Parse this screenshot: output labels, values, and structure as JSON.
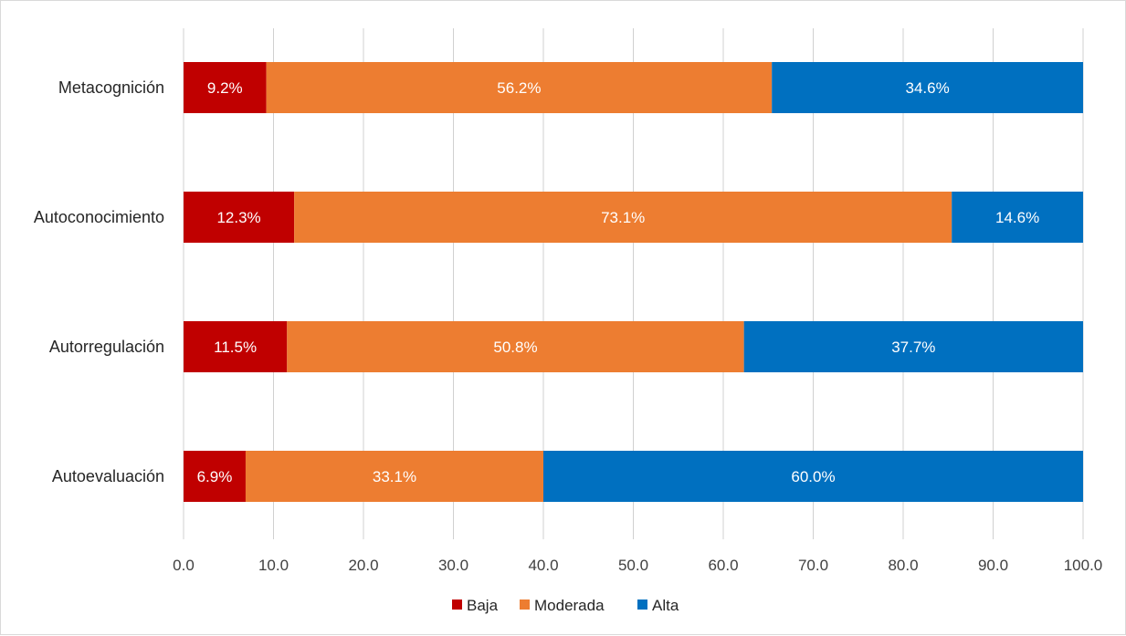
{
  "chart_data": {
    "type": "bar",
    "orientation": "horizontal",
    "stacked": true,
    "categories": [
      "Metacognición",
      "Autoconocimiento",
      "Autorregulación",
      "Autoevaluación"
    ],
    "series": [
      {
        "name": "Baja",
        "color": "#c00000",
        "values": [
          9.2,
          12.3,
          11.5,
          6.9
        ],
        "labels": [
          "9.2%",
          "12.3%",
          "11.5%",
          "6.9%"
        ]
      },
      {
        "name": "Moderada",
        "color": "#ed7d31",
        "values": [
          56.2,
          73.1,
          50.8,
          33.1
        ],
        "labels": [
          "56.2%",
          "73.1%",
          "50.8%",
          "33.1%"
        ]
      },
      {
        "name": "Alta",
        "color": "#0070c0",
        "values": [
          34.6,
          14.6,
          37.7,
          60.0
        ],
        "labels": [
          "34.6%",
          "14.6%",
          "37.7%",
          "60.0%"
        ]
      }
    ],
    "x_ticks": [
      "0.0",
      "10.0",
      "20.0",
      "30.0",
      "40.0",
      "50.0",
      "60.0",
      "70.0",
      "80.0",
      "90.0",
      "100.0"
    ],
    "xlim": [
      0,
      100
    ],
    "grid": true,
    "legend_position": "bottom",
    "title": "",
    "xlabel": "",
    "ylabel": ""
  }
}
